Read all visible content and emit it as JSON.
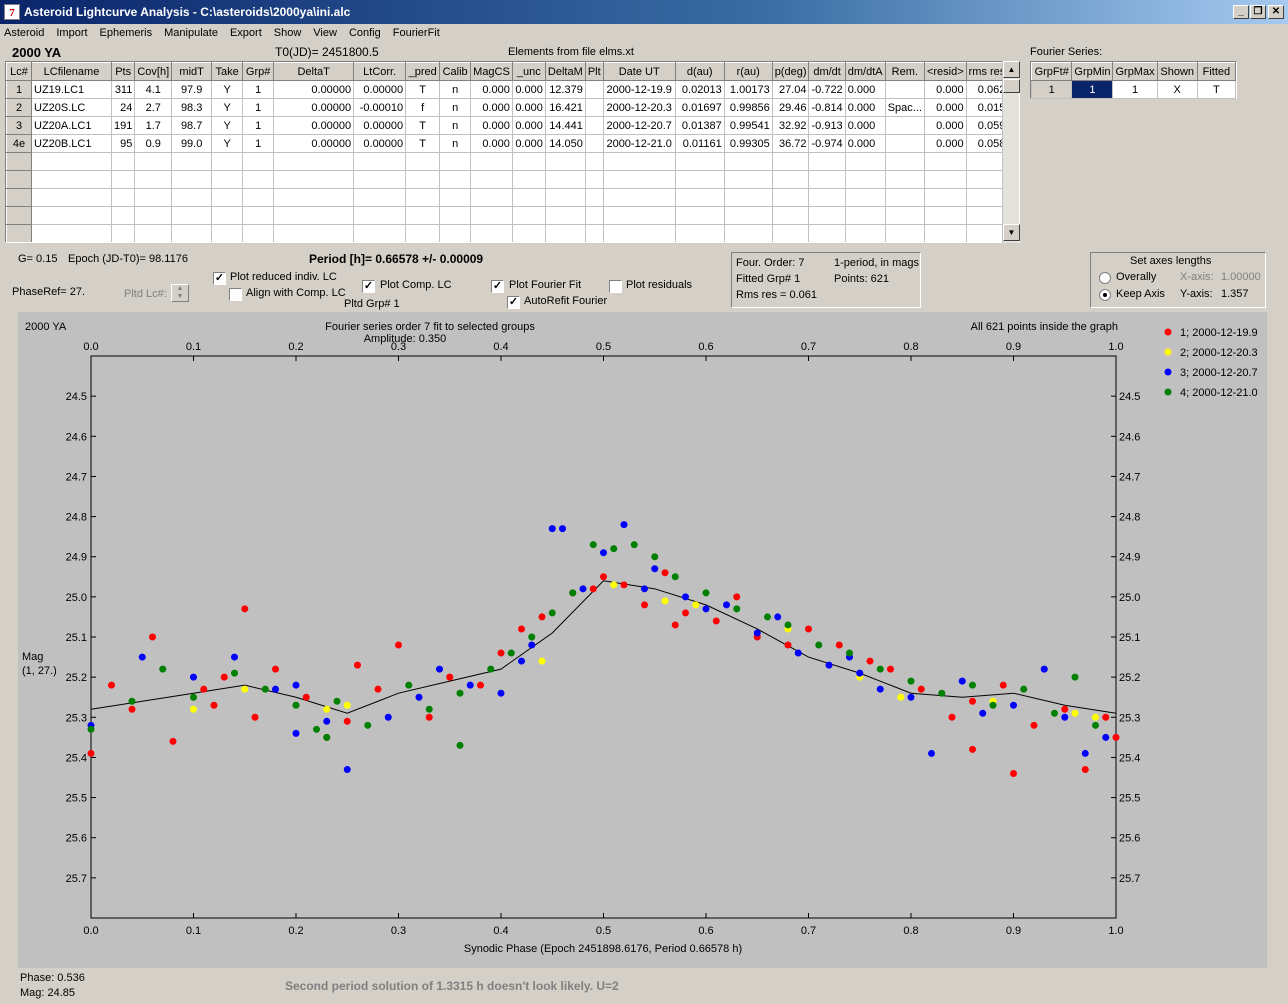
{
  "window": {
    "title": "Asteroid Lightcurve Analysis - C:\\asteroids\\2000ya\\ini.alc",
    "icon_glyph": "7",
    "minimize_glyph": "_",
    "restore_glyph": "❐",
    "close_glyph": "✕"
  },
  "menu": [
    "Asteroid",
    "Import",
    "Ephemeris",
    "Manipulate",
    "Export",
    "Show",
    "View",
    "Config",
    "FourierFit"
  ],
  "header": {
    "asteroid": "2000 YA",
    "t0": "T0(JD)= 2451800.5",
    "elements": "Elements from file elms.xt",
    "fourier_series_label": "Fourier Series:"
  },
  "lc_table": {
    "columns": [
      "Lc#",
      "LCfilename",
      "Pts",
      "Cov[h]",
      "midT",
      "Take",
      "Grp#",
      "DeltaT",
      "LtCorr.",
      "_pred",
      "Calib",
      "MagCS",
      "_unc",
      "DeltaM",
      "Plt",
      "Date UT",
      "d(au)",
      "r(au)",
      "p(deg)",
      "dm/dt",
      "dm/dtA",
      "Rem.",
      "<resid>",
      "rms res"
    ],
    "rows": [
      [
        "1",
        "UZ19.LC1",
        "311",
        "4.1",
        "97.9",
        "Y",
        "1",
        "0.00000",
        "0.00000",
        "T",
        "n",
        "0.000",
        "0.000",
        "12.379",
        "",
        "2000-12-19.9",
        "0.02013",
        "1.00173",
        "27.04",
        "-0.722",
        "0.000",
        "",
        "0.000",
        "0.062"
      ],
      [
        "2",
        "UZ20S.LC",
        "24",
        "2.7",
        "98.3",
        "Y",
        "1",
        "0.00000",
        "-0.00010",
        "f",
        "n",
        "0.000",
        "0.000",
        "16.421",
        "",
        "2000-12-20.3",
        "0.01697",
        "0.99856",
        "29.46",
        "-0.814",
        "0.000",
        "Spac...",
        "0.000",
        "0.015"
      ],
      [
        "3",
        "UZ20A.LC1",
        "191",
        "1.7",
        "98.7",
        "Y",
        "1",
        "0.00000",
        "0.00000",
        "T",
        "n",
        "0.000",
        "0.000",
        "14.441",
        "",
        "2000-12-20.7",
        "0.01387",
        "0.99541",
        "32.92",
        "-0.913",
        "0.000",
        "",
        "0.000",
        "0.059"
      ],
      [
        "4e",
        "UZ20B.LC1",
        "95",
        "0.9",
        "99.0",
        "Y",
        "1",
        "0.00000",
        "0.00000",
        "T",
        "n",
        "0.000",
        "0.000",
        "14.050",
        "",
        "2000-12-21.0",
        "0.01161",
        "0.99305",
        "36.72",
        "-0.974",
        "0.000",
        "",
        "0.000",
        "0.058"
      ]
    ],
    "empty_rows": 5
  },
  "fourier_table": {
    "columns": [
      "GrpFt#",
      "GrpMin",
      "GrpMax",
      "Shown",
      "Fitted"
    ],
    "row": [
      "1",
      "1",
      "1",
      "X",
      "T"
    ]
  },
  "params": {
    "g": "G= 0.15",
    "epoch": "Epoch (JD-T0)= 98.1176",
    "phase_ref": "PhaseRef= 27.",
    "pltd_lc": "Pltd Lc#:",
    "period": "Period [h]= 0.66578 +/- 0.00009",
    "pltd_grp": "Pltd Grp#  1"
  },
  "checkboxes": {
    "plot_reduced": {
      "label": "Plot reduced indiv. LC",
      "checked": true
    },
    "align_comp": {
      "label": "Align with Comp. LC",
      "checked": false
    },
    "plot_comp": {
      "label": "Plot Comp. LC",
      "checked": true
    },
    "plot_fourier": {
      "label": "Plot Fourier Fit",
      "checked": true
    },
    "autorefit": {
      "label": "AutoRefit Fourier",
      "checked": true
    },
    "plot_residuals": {
      "label": "Plot residuals",
      "checked": false
    },
    "check_glyph": "✓"
  },
  "fit_info": {
    "order": "Four. Order:  7",
    "mode": "1-period, in mags",
    "fitted_grp": "Fitted Grp# 1",
    "points": "Points: 621",
    "rms": "Rms res     = 0.061"
  },
  "axes_box": {
    "title": "Set axes lengths",
    "overally": "Overally",
    "keep_axis": "Keep Axis",
    "selected": "keep_axis",
    "x_label": "X-axis:",
    "x_value": "1.00000",
    "y_label": "Y-axis:",
    "y_value": "1.357"
  },
  "plot": {
    "corner_label": "2000 YA",
    "title": "Fourier series order 7 fit to selected groups",
    "amplitude": "Amplitude: 0.350",
    "points_note": "All 621 points inside the graph",
    "ylabel_1": "Mag",
    "ylabel_2": "(1, 27.)",
    "xlabel": "Synodic Phase (Epoch 2451898.6176, Period 0.66578 h)"
  },
  "status": {
    "phase": "Phase:  0.536",
    "mag": "Mag:    24.85",
    "hint": "Second period solution of 1.3315 h doesn't look likely. U=2"
  },
  "chart_data": {
    "type": "scatter",
    "title": "Fourier series order 7 fit to selected groups",
    "xlabel": "Synodic Phase (Epoch 2451898.6176, Period 0.66578 h)",
    "ylabel": "Mag (1, 27.)",
    "xlim": [
      0.0,
      1.0
    ],
    "ylim": [
      25.8,
      24.4
    ],
    "x_ticks": [
      "0.0",
      "0.1",
      "0.2",
      "0.3",
      "0.4",
      "0.5",
      "0.6",
      "0.7",
      "0.8",
      "0.9",
      "1.0"
    ],
    "y_ticks": [
      "24.5",
      "24.6",
      "24.7",
      "24.8",
      "24.9",
      "25.0",
      "25.1",
      "25.2",
      "25.3",
      "25.4",
      "25.5",
      "25.6",
      "25.7"
    ],
    "legend_position": "right",
    "fourier_curve": {
      "x": [
        0.0,
        0.05,
        0.1,
        0.15,
        0.2,
        0.25,
        0.3,
        0.35,
        0.4,
        0.45,
        0.5,
        0.55,
        0.6,
        0.65,
        0.7,
        0.75,
        0.8,
        0.85,
        0.9,
        0.95,
        1.0
      ],
      "y": [
        25.28,
        25.26,
        25.24,
        25.22,
        25.25,
        25.29,
        25.24,
        25.21,
        25.18,
        25.09,
        24.96,
        24.98,
        25.02,
        25.08,
        25.15,
        25.19,
        25.24,
        25.25,
        25.24,
        25.27,
        25.29
      ],
      "color": "#000000"
    },
    "series": [
      {
        "name": "1; 2000-12-19.9",
        "color": "#ff0000",
        "x": [
          0.0,
          0.02,
          0.04,
          0.06,
          0.08,
          0.11,
          0.13,
          0.15,
          0.16,
          0.18,
          0.21,
          0.23,
          0.25,
          0.28,
          0.3,
          0.33,
          0.35,
          0.38,
          0.4,
          0.42,
          0.44,
          0.47,
          0.49,
          0.5,
          0.52,
          0.54,
          0.56,
          0.58,
          0.61,
          0.63,
          0.65,
          0.68,
          0.7,
          0.73,
          0.76,
          0.78,
          0.81,
          0.84,
          0.86,
          0.89,
          0.92,
          0.95,
          0.97,
          0.99,
          1.0,
          0.12,
          0.26,
          0.57,
          0.86,
          0.9
        ],
        "y": [
          25.39,
          25.22,
          25.28,
          25.1,
          25.36,
          25.23,
          25.2,
          25.03,
          25.3,
          25.18,
          25.25,
          25.35,
          25.31,
          25.23,
          25.12,
          25.3,
          25.2,
          25.22,
          25.14,
          25.08,
          25.05,
          24.99,
          24.98,
          24.95,
          24.97,
          25.02,
          24.94,
          25.04,
          25.06,
          25.0,
          25.1,
          25.12,
          25.08,
          25.12,
          25.16,
          25.18,
          25.23,
          25.3,
          25.26,
          25.22,
          25.32,
          25.28,
          25.43,
          25.3,
          25.35,
          25.27,
          25.17,
          25.07,
          25.38,
          25.44
        ]
      },
      {
        "name": "2; 2000-12-20.3",
        "color": "#ffff00",
        "x": [
          0.1,
          0.15,
          0.23,
          0.25,
          0.44,
          0.51,
          0.56,
          0.59,
          0.6,
          0.68,
          0.75,
          0.79,
          0.88,
          0.96,
          0.98
        ],
        "y": [
          25.28,
          25.23,
          25.28,
          25.27,
          25.16,
          24.97,
          25.01,
          25.02,
          25.03,
          25.08,
          25.2,
          25.25,
          25.26,
          25.29,
          25.3
        ]
      },
      {
        "name": "3; 2000-12-20.7",
        "color": "#0000ff",
        "x": [
          0.0,
          0.05,
          0.1,
          0.14,
          0.18,
          0.2,
          0.23,
          0.25,
          0.29,
          0.32,
          0.34,
          0.37,
          0.4,
          0.43,
          0.45,
          0.46,
          0.48,
          0.5,
          0.52,
          0.55,
          0.58,
          0.6,
          0.62,
          0.65,
          0.67,
          0.69,
          0.72,
          0.75,
          0.77,
          0.8,
          0.82,
          0.85,
          0.87,
          0.9,
          0.93,
          0.95,
          0.97,
          0.99,
          0.2,
          0.42,
          0.54,
          0.74
        ],
        "y": [
          25.32,
          25.15,
          25.2,
          25.15,
          25.23,
          25.34,
          25.31,
          25.43,
          25.3,
          25.25,
          25.18,
          25.22,
          25.24,
          25.12,
          24.83,
          24.83,
          24.98,
          24.89,
          24.82,
          24.93,
          25.0,
          25.03,
          25.02,
          25.09,
          25.05,
          25.14,
          25.17,
          25.19,
          25.23,
          25.25,
          25.39,
          25.21,
          25.29,
          25.27,
          25.18,
          25.3,
          25.39,
          25.35,
          25.22,
          25.16,
          24.98,
          25.15
        ]
      },
      {
        "name": "4; 2000-12-21.0",
        "color": "#008000",
        "x": [
          0.0,
          0.04,
          0.07,
          0.1,
          0.14,
          0.17,
          0.2,
          0.22,
          0.24,
          0.27,
          0.31,
          0.33,
          0.36,
          0.39,
          0.41,
          0.43,
          0.45,
          0.47,
          0.49,
          0.51,
          0.53,
          0.55,
          0.57,
          0.6,
          0.63,
          0.66,
          0.68,
          0.71,
          0.74,
          0.77,
          0.8,
          0.83,
          0.86,
          0.88,
          0.91,
          0.94,
          0.96,
          0.98,
          0.23,
          0.36
        ],
        "y": [
          25.33,
          25.26,
          25.18,
          25.25,
          25.19,
          25.23,
          25.27,
          25.33,
          25.26,
          25.32,
          25.22,
          25.28,
          25.24,
          25.18,
          25.14,
          25.1,
          25.04,
          24.99,
          24.87,
          24.88,
          24.87,
          24.9,
          24.95,
          24.99,
          25.03,
          25.05,
          25.07,
          25.12,
          25.14,
          25.18,
          25.21,
          25.24,
          25.22,
          25.27,
          25.23,
          25.29,
          25.2,
          25.32,
          25.35,
          25.37
        ]
      }
    ]
  }
}
